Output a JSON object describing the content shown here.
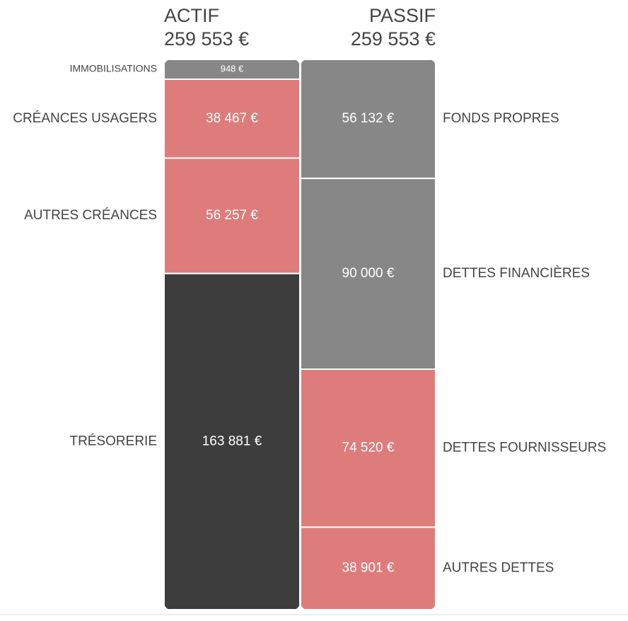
{
  "actif": {
    "title": "ACTIF",
    "total": 259553,
    "total_label": "259 553 €",
    "items": [
      {
        "label": "IMMOBILISATIONS",
        "amount": 948,
        "amount_label": "948 €",
        "color": "#878787"
      },
      {
        "label": "CRÉANCES USAGERS",
        "amount": 38467,
        "amount_label": "38 467 €",
        "color": "#de7c7c"
      },
      {
        "label": "AUTRES CRÉANCES",
        "amount": 56257,
        "amount_label": "56 257 €",
        "color": "#de7c7c"
      },
      {
        "label": "TRÉSORERIE",
        "amount": 163881,
        "amount_label": "163 881 €",
        "color": "#3d3d3d"
      }
    ]
  },
  "passif": {
    "title": "PASSIF",
    "total": 259553,
    "total_label": "259 553 €",
    "items": [
      {
        "label": "FONDS PROPRES",
        "amount": 56132,
        "amount_label": "56 132 €",
        "color": "#878787"
      },
      {
        "label": "DETTES FINANCIÈRES",
        "amount": 90000,
        "amount_label": "90 000 €",
        "color": "#878787"
      },
      {
        "label": "DETTES FOURNISSEURS",
        "amount": 74520,
        "amount_label": "74 520 €",
        "color": "#de7c7c"
      },
      {
        "label": "AUTRES DETTES",
        "amount": 38901,
        "amount_label": "38 901 €",
        "color": "#de7c7c"
      }
    ]
  }
}
